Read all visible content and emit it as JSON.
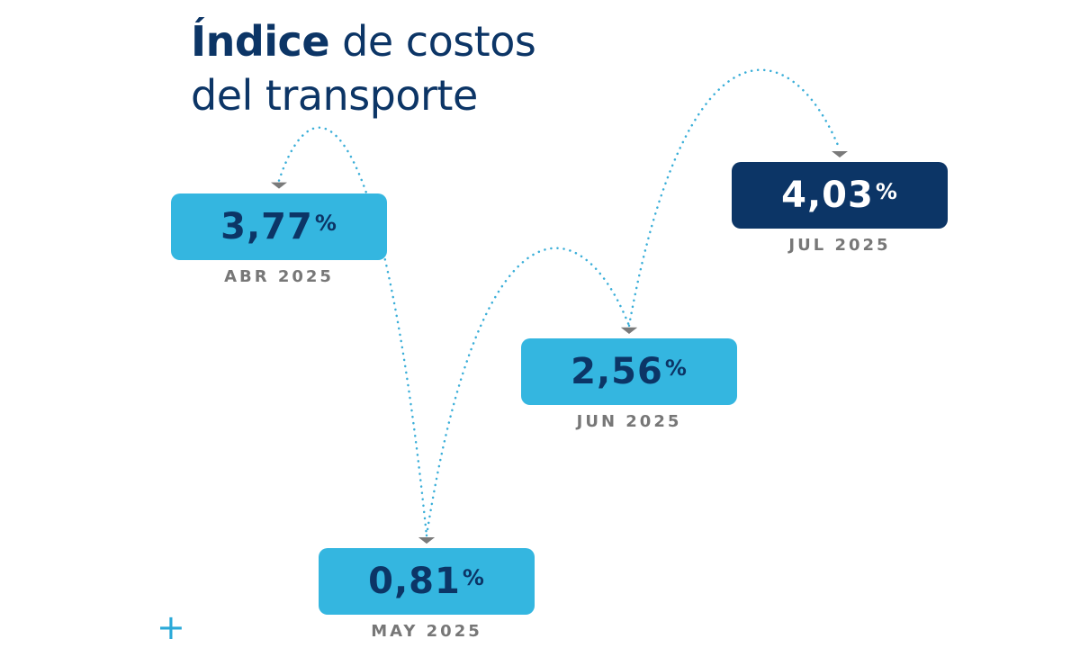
{
  "title": {
    "bold": "Índice",
    "rest": "de costos",
    "line2": "del transporte"
  },
  "chart_data": {
    "type": "line",
    "title": "Índice de costos del transporte",
    "unit": "%",
    "categories": [
      "ABR 2025",
      "MAY 2025",
      "JUN 2025",
      "JUL 2025"
    ],
    "values": [
      3.77,
      0.81,
      2.56,
      4.03
    ],
    "value_labels": [
      "3,77",
      "0,81",
      "2,56",
      "4,03"
    ],
    "highlight_index": 3,
    "grid": false
  },
  "colors": {
    "navy": "#0c3566",
    "light_blue": "#34b6e0",
    "dots": "#3aaed8",
    "arrow": "#7a7a7a",
    "label_gray": "#777777"
  },
  "decoration": {
    "plus": "+"
  }
}
